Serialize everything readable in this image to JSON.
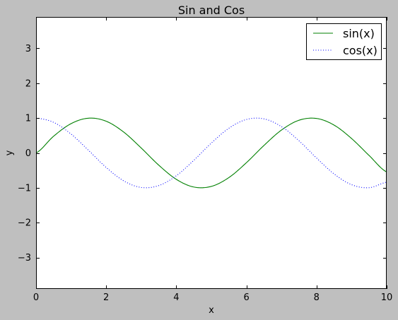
{
  "chart_data": {
    "type": "line",
    "title": "Sin and Cos",
    "xlabel": "x",
    "ylabel": "y",
    "xlim": [
      0,
      10
    ],
    "ylim": [
      -3.9,
      3.9
    ],
    "x_ticks": [
      0,
      2,
      4,
      6,
      8,
      10
    ],
    "x_tick_labels": [
      "0",
      "2",
      "4",
      "6",
      "8",
      "10"
    ],
    "y_ticks": [
      -3,
      -2,
      -1,
      0,
      1,
      2,
      3
    ],
    "y_tick_labels": [
      "−3",
      "−2",
      "−1",
      "0",
      "1",
      "2",
      "3"
    ],
    "grid": false,
    "legend_position": "top-right",
    "colors": {
      "background": "#bfbfbf",
      "plot_area": "#ffffff"
    },
    "series": [
      {
        "name": "sin(x)",
        "color": "#008000",
        "line_style": "solid",
        "x": [
          0,
          0.5,
          1,
          1.5,
          2,
          2.5,
          3,
          3.5,
          4,
          4.5,
          5,
          5.5,
          6,
          6.5,
          7,
          7.5,
          8,
          8.5,
          9,
          9.5,
          10
        ],
        "values": [
          0,
          0.479,
          0.841,
          0.997,
          0.909,
          0.598,
          0.141,
          -0.351,
          -0.757,
          -0.978,
          -0.959,
          -0.706,
          -0.279,
          0.215,
          0.657,
          0.938,
          0.989,
          0.798,
          0.412,
          -0.075,
          -0.544
        ]
      },
      {
        "name": "cos(x)",
        "color": "#0000ff",
        "line_style": "dotted",
        "x": [
          0,
          0.5,
          1,
          1.5,
          2,
          2.5,
          3,
          3.5,
          4,
          4.5,
          5,
          5.5,
          6,
          6.5,
          7,
          7.5,
          8,
          8.5,
          9,
          9.5,
          10
        ],
        "values": [
          1,
          0.878,
          0.54,
          0.071,
          -0.416,
          -0.801,
          -0.99,
          -0.936,
          -0.654,
          -0.211,
          0.284,
          0.709,
          0.96,
          0.977,
          0.754,
          0.347,
          -0.146,
          -0.602,
          -0.911,
          -0.997,
          -0.839
        ]
      }
    ]
  }
}
